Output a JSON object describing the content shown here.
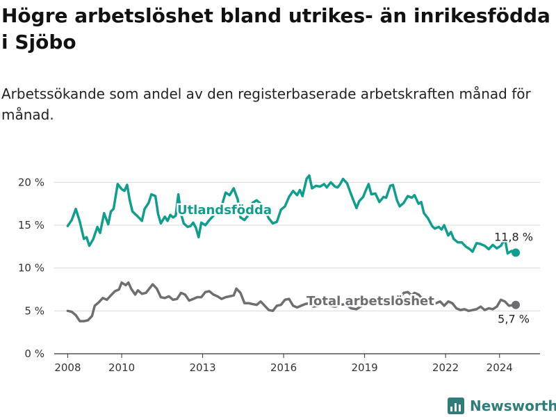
{
  "title": "Högre arbetslöshet bland utrikes- än inrikesfödda i Sjöbo",
  "subtitle": "Arbetssökande som andel av den registerbaserade arbetskraften månad för månad.",
  "brand": "Newsworthy",
  "colors": {
    "utlandsfodda": "#0f9e8e",
    "total": "#6e6e72",
    "grid": "#d9d9d9",
    "axis": "#333333"
  },
  "chart_data": {
    "type": "line",
    "x_unit": "year",
    "y_unit": "%",
    "ylim": [
      0,
      21
    ],
    "xlim": [
      2007.5,
      2025.5
    ],
    "grid": "horizontal",
    "y_ticks": [
      {
        "value": 0,
        "label": "0 %"
      },
      {
        "value": 5,
        "label": "5 %"
      },
      {
        "value": 10,
        "label": "10 %"
      },
      {
        "value": 15,
        "label": "15 %"
      },
      {
        "value": 20,
        "label": "20 %"
      }
    ],
    "x_ticks": [
      {
        "value": 2008,
        "label": "2008"
      },
      {
        "value": 2010,
        "label": "2010"
      },
      {
        "value": 2013,
        "label": "2013"
      },
      {
        "value": 2016,
        "label": "2016"
      },
      {
        "value": 2019,
        "label": "2019"
      },
      {
        "value": 2022,
        "label": "2022"
      },
      {
        "value": 2024,
        "label": "2024"
      }
    ],
    "series": [
      {
        "name": "Utlandsfödda",
        "color": "#0f9e8e",
        "end_label": "11,8 %",
        "points": [
          [
            2008.0,
            14.9
          ],
          [
            2008.15,
            15.6
          ],
          [
            2008.3,
            16.9
          ],
          [
            2008.45,
            15.4
          ],
          [
            2008.6,
            13.4
          ],
          [
            2008.7,
            13.6
          ],
          [
            2008.8,
            12.6
          ],
          [
            2008.95,
            13.4
          ],
          [
            2009.1,
            14.8
          ],
          [
            2009.2,
            14.1
          ],
          [
            2009.35,
            16.4
          ],
          [
            2009.5,
            15.1
          ],
          [
            2009.6,
            16.6
          ],
          [
            2009.7,
            16.9
          ],
          [
            2009.85,
            19.8
          ],
          [
            2010.0,
            19.2
          ],
          [
            2010.1,
            19.0
          ],
          [
            2010.2,
            19.7
          ],
          [
            2010.3,
            17.9
          ],
          [
            2010.4,
            16.6
          ],
          [
            2010.6,
            16.0
          ],
          [
            2010.75,
            15.5
          ],
          [
            2010.85,
            16.9
          ],
          [
            2011.0,
            17.6
          ],
          [
            2011.1,
            18.6
          ],
          [
            2011.25,
            18.4
          ],
          [
            2011.35,
            16.3
          ],
          [
            2011.45,
            15.2
          ],
          [
            2011.6,
            16.0
          ],
          [
            2011.7,
            15.5
          ],
          [
            2011.8,
            16.2
          ],
          [
            2011.9,
            15.9
          ],
          [
            2012.0,
            16.1
          ],
          [
            2012.1,
            18.6
          ],
          [
            2012.2,
            16.3
          ],
          [
            2012.3,
            15.2
          ],
          [
            2012.45,
            14.8
          ],
          [
            2012.55,
            14.9
          ],
          [
            2012.65,
            15.3
          ],
          [
            2012.75,
            14.7
          ],
          [
            2012.85,
            13.6
          ],
          [
            2012.95,
            15.3
          ],
          [
            2013.1,
            15.0
          ],
          [
            2013.25,
            15.6
          ],
          [
            2013.4,
            16.1
          ],
          [
            2013.55,
            17.0
          ],
          [
            2013.7,
            17.2
          ],
          [
            2013.85,
            18.8
          ],
          [
            2014.0,
            18.5
          ],
          [
            2014.15,
            19.3
          ],
          [
            2014.3,
            18.0
          ],
          [
            2014.4,
            15.9
          ],
          [
            2014.55,
            15.6
          ],
          [
            2014.7,
            16.2
          ],
          [
            2014.85,
            17.6
          ],
          [
            2015.0,
            17.9
          ],
          [
            2015.15,
            17.5
          ],
          [
            2015.3,
            16.8
          ],
          [
            2015.45,
            15.8
          ],
          [
            2015.6,
            15.2
          ],
          [
            2015.75,
            15.4
          ],
          [
            2015.9,
            16.8
          ],
          [
            2016.05,
            17.2
          ],
          [
            2016.2,
            18.3
          ],
          [
            2016.35,
            19.0
          ],
          [
            2016.5,
            18.5
          ],
          [
            2016.6,
            19.1
          ],
          [
            2016.7,
            18.4
          ],
          [
            2016.85,
            20.4
          ],
          [
            2016.95,
            20.8
          ],
          [
            2017.05,
            19.3
          ],
          [
            2017.2,
            19.6
          ],
          [
            2017.35,
            19.5
          ],
          [
            2017.5,
            19.8
          ],
          [
            2017.6,
            19.4
          ],
          [
            2017.75,
            20.0
          ],
          [
            2017.9,
            19.5
          ],
          [
            2018.0,
            19.4
          ],
          [
            2018.1,
            19.8
          ],
          [
            2018.2,
            20.4
          ],
          [
            2018.35,
            19.9
          ],
          [
            2018.5,
            18.6
          ],
          [
            2018.6,
            17.8
          ],
          [
            2018.7,
            17.0
          ],
          [
            2018.8,
            17.8
          ],
          [
            2018.95,
            18.3
          ],
          [
            2019.05,
            19.1
          ],
          [
            2019.15,
            19.8
          ],
          [
            2019.25,
            18.6
          ],
          [
            2019.4,
            18.7
          ],
          [
            2019.55,
            17.7
          ],
          [
            2019.7,
            18.3
          ],
          [
            2019.8,
            18.2
          ],
          [
            2019.95,
            19.6
          ],
          [
            2020.05,
            19.7
          ],
          [
            2020.2,
            17.9
          ],
          [
            2020.3,
            17.2
          ],
          [
            2020.45,
            17.6
          ],
          [
            2020.6,
            18.4
          ],
          [
            2020.75,
            18.2
          ],
          [
            2020.85,
            18.5
          ],
          [
            2021.0,
            17.5
          ],
          [
            2021.1,
            17.7
          ],
          [
            2021.2,
            16.4
          ],
          [
            2021.35,
            15.8
          ],
          [
            2021.5,
            14.9
          ],
          [
            2021.6,
            14.6
          ],
          [
            2021.75,
            14.8
          ],
          [
            2021.85,
            14.5
          ],
          [
            2021.95,
            15.0
          ],
          [
            2022.1,
            13.8
          ],
          [
            2022.2,
            14.2
          ],
          [
            2022.3,
            13.4
          ],
          [
            2022.45,
            13.0
          ],
          [
            2022.6,
            13.0
          ],
          [
            2022.75,
            12.5
          ],
          [
            2022.9,
            12.2
          ],
          [
            2023.0,
            11.9
          ],
          [
            2023.15,
            12.9
          ],
          [
            2023.3,
            12.8
          ],
          [
            2023.45,
            12.6
          ],
          [
            2023.6,
            12.2
          ],
          [
            2023.75,
            12.7
          ],
          [
            2023.9,
            12.3
          ],
          [
            2024.05,
            12.6
          ],
          [
            2024.2,
            13.4
          ],
          [
            2024.3,
            11.7
          ],
          [
            2024.45,
            12.0
          ],
          [
            2024.6,
            11.8
          ]
        ]
      },
      {
        "name": "Total arbetslöshet",
        "color": "#6e6e72",
        "end_label": "5,7 %",
        "points": [
          [
            2008.0,
            5.0
          ],
          [
            2008.15,
            4.9
          ],
          [
            2008.3,
            4.5
          ],
          [
            2008.45,
            3.8
          ],
          [
            2008.6,
            3.8
          ],
          [
            2008.75,
            3.9
          ],
          [
            2008.9,
            4.4
          ],
          [
            2009.0,
            5.6
          ],
          [
            2009.15,
            6.0
          ],
          [
            2009.3,
            6.5
          ],
          [
            2009.45,
            6.3
          ],
          [
            2009.6,
            6.8
          ],
          [
            2009.75,
            7.3
          ],
          [
            2009.9,
            7.5
          ],
          [
            2010.0,
            8.3
          ],
          [
            2010.15,
            8.0
          ],
          [
            2010.25,
            8.3
          ],
          [
            2010.35,
            7.6
          ],
          [
            2010.5,
            6.9
          ],
          [
            2010.6,
            7.4
          ],
          [
            2010.75,
            7.0
          ],
          [
            2010.9,
            7.1
          ],
          [
            2011.0,
            7.5
          ],
          [
            2011.15,
            8.1
          ],
          [
            2011.3,
            7.6
          ],
          [
            2011.45,
            6.6
          ],
          [
            2011.6,
            6.5
          ],
          [
            2011.75,
            6.7
          ],
          [
            2011.9,
            6.3
          ],
          [
            2012.05,
            6.4
          ],
          [
            2012.2,
            7.1
          ],
          [
            2012.35,
            6.9
          ],
          [
            2012.5,
            6.2
          ],
          [
            2012.65,
            6.4
          ],
          [
            2012.8,
            6.6
          ],
          [
            2012.95,
            6.6
          ],
          [
            2013.1,
            7.2
          ],
          [
            2013.25,
            7.3
          ],
          [
            2013.4,
            6.9
          ],
          [
            2013.55,
            6.7
          ],
          [
            2013.7,
            6.4
          ],
          [
            2013.85,
            6.6
          ],
          [
            2014.0,
            6.7
          ],
          [
            2014.15,
            6.8
          ],
          [
            2014.25,
            7.6
          ],
          [
            2014.4,
            7.1
          ],
          [
            2014.55,
            5.9
          ],
          [
            2014.7,
            5.9
          ],
          [
            2014.85,
            5.8
          ],
          [
            2015.0,
            5.7
          ],
          [
            2015.15,
            6.1
          ],
          [
            2015.3,
            5.6
          ],
          [
            2015.45,
            5.1
          ],
          [
            2015.6,
            5.0
          ],
          [
            2015.75,
            5.6
          ],
          [
            2015.9,
            5.7
          ],
          [
            2016.05,
            6.3
          ],
          [
            2016.2,
            6.4
          ],
          [
            2016.35,
            5.6
          ],
          [
            2016.5,
            5.4
          ],
          [
            2016.65,
            5.6
          ],
          [
            2016.8,
            5.8
          ],
          [
            2016.95,
            5.9
          ],
          [
            2017.1,
            5.5
          ],
          [
            2017.3,
            5.6
          ],
          [
            2017.5,
            5.9
          ],
          [
            2017.7,
            5.6
          ],
          [
            2017.9,
            5.5
          ],
          [
            2018.1,
            5.7
          ],
          [
            2018.3,
            5.8
          ],
          [
            2018.5,
            5.3
          ],
          [
            2018.7,
            5.2
          ],
          [
            2018.9,
            5.6
          ],
          [
            2019.1,
            5.9
          ],
          [
            2019.3,
            5.8
          ],
          [
            2019.5,
            5.7
          ],
          [
            2019.7,
            5.9
          ],
          [
            2019.9,
            6.3
          ],
          [
            2020.1,
            6.4
          ],
          [
            2020.3,
            6.5
          ],
          [
            2020.45,
            7.1
          ],
          [
            2020.6,
            7.2
          ],
          [
            2020.75,
            6.8
          ],
          [
            2020.85,
            7.1
          ],
          [
            2021.0,
            6.9
          ],
          [
            2021.15,
            6.4
          ],
          [
            2021.3,
            6.0
          ],
          [
            2021.5,
            5.7
          ],
          [
            2021.65,
            5.9
          ],
          [
            2021.8,
            6.1
          ],
          [
            2021.95,
            5.6
          ],
          [
            2022.1,
            6.1
          ],
          [
            2022.25,
            5.9
          ],
          [
            2022.4,
            5.3
          ],
          [
            2022.55,
            5.1
          ],
          [
            2022.7,
            5.2
          ],
          [
            2022.85,
            5.0
          ],
          [
            2023.0,
            5.1
          ],
          [
            2023.15,
            5.2
          ],
          [
            2023.3,
            5.5
          ],
          [
            2023.45,
            5.1
          ],
          [
            2023.6,
            5.3
          ],
          [
            2023.75,
            5.2
          ],
          [
            2023.9,
            5.5
          ],
          [
            2024.05,
            6.3
          ],
          [
            2024.2,
            6.1
          ],
          [
            2024.35,
            5.6
          ],
          [
            2024.6,
            5.7
          ]
        ]
      }
    ]
  }
}
